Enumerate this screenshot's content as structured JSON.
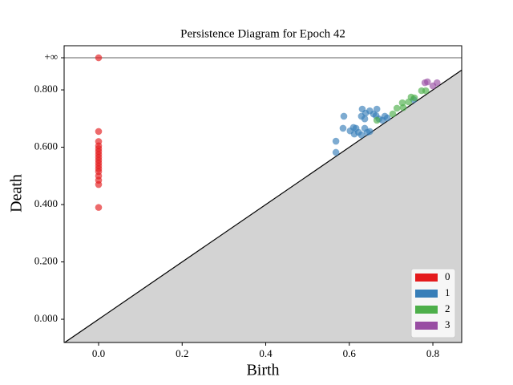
{
  "chart_data": {
    "type": "scatter",
    "title": "Persistence Diagram for Epoch 42",
    "x_label": "Birth",
    "y_label": "Death",
    "xlim": [
      -0.0825,
      0.869
    ],
    "ylim": [
      -0.081,
      0.954
    ],
    "xticks": [
      {
        "value": 0,
        "label": "0.0"
      },
      {
        "value": 0.2,
        "label": "0.2"
      },
      {
        "value": 0.4,
        "label": "0.4"
      },
      {
        "value": 0.6,
        "label": "0.6"
      },
      {
        "value": 0.8,
        "label": "0.8"
      }
    ],
    "yticks": [
      {
        "value": 0,
        "label": "0.000"
      },
      {
        "value": 0.2,
        "label": "0.200"
      },
      {
        "value": 0.4,
        "label": "0.400"
      },
      {
        "value": 0.6,
        "label": "0.600"
      },
      {
        "value": 0.8,
        "label": "0.800"
      },
      {
        "value": 0.912,
        "label": "+∞"
      }
    ],
    "legend": "lower right",
    "series": [
      {
        "name": "0",
        "color": "#e41a1c",
        "x": [
          0,
          0,
          0,
          0,
          0,
          0,
          0,
          0,
          0,
          0,
          0,
          0,
          0,
          0,
          0,
          0,
          0
        ],
        "values": [
          0.912,
          0.655,
          0.62,
          0.605,
          0.595,
          0.585,
          0.575,
          0.565,
          0.555,
          0.545,
          0.535,
          0.525,
          0.515,
          0.5,
          0.485,
          0.47,
          0.39
        ]
      },
      {
        "name": "1",
        "color": "#377eb8",
        "x": [
          0.568,
          0.568,
          0.587,
          0.585,
          0.602,
          0.61,
          0.616,
          0.612,
          0.622,
          0.629,
          0.637,
          0.643,
          0.649,
          0.631,
          0.629,
          0.637,
          0.649,
          0.658,
          0.666,
          0.671,
          0.685,
          0.691,
          0.679,
          0.664,
          0.639,
          0.754
        ],
        "values": [
          0.582,
          0.621,
          0.708,
          0.666,
          0.657,
          0.669,
          0.666,
          0.646,
          0.652,
          0.643,
          0.666,
          0.652,
          0.655,
          0.733,
          0.708,
          0.699,
          0.727,
          0.716,
          0.733,
          0.699,
          0.708,
          0.702,
          0.694,
          0.71,
          0.719,
          0.766
        ]
      },
      {
        "name": "2",
        "color": "#4daf4a",
        "x": [
          0.666,
          0.704,
          0.714,
          0.727,
          0.729,
          0.742,
          0.748,
          0.756,
          0.773,
          0.783
        ],
        "values": [
          0.694,
          0.716,
          0.736,
          0.755,
          0.738,
          0.758,
          0.775,
          0.772,
          0.797,
          0.797
        ]
      },
      {
        "name": "3",
        "color": "#984ea3",
        "x": [
          0.781,
          0.787,
          0.8,
          0.81
        ],
        "values": [
          0.825,
          0.828,
          0.814,
          0.825
        ]
      }
    ]
  }
}
